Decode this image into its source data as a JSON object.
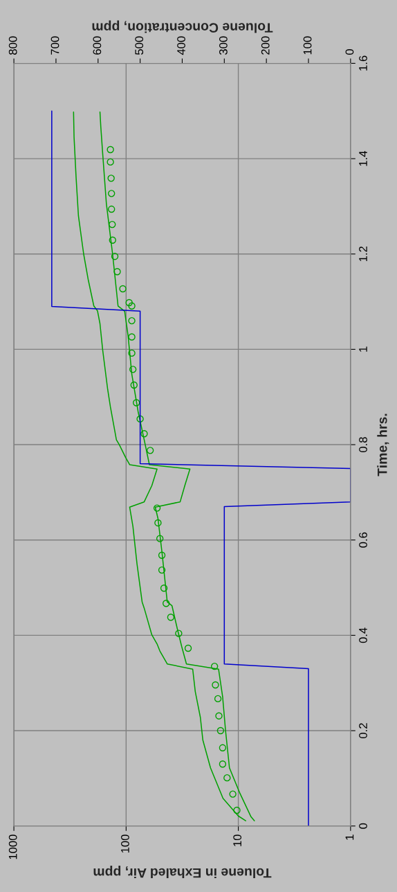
{
  "chart_data": {
    "type": "line",
    "orientation": "horizontal",
    "xlabel": "Toluene in Exhaled Air, ppm",
    "x2label": "Toluene Concentration, ppm",
    "ylabel": "Time, hrs.",
    "log": "x",
    "grid": true,
    "xlim": [
      1000,
      1
    ],
    "xticks": [
      1000,
      100,
      10,
      1
    ],
    "x2lim": [
      800,
      0
    ],
    "x2ticks": [
      800,
      700,
      600,
      500,
      400,
      300,
      200,
      100,
      0
    ],
    "ylim": [
      0,
      1.6
    ],
    "yticks": [
      0,
      0.2,
      0.4,
      0.6,
      0.8,
      1,
      1.2,
      1.4,
      1.6
    ],
    "series": [
      {
        "axis": "x2",
        "color": "#0000cc",
        "x": [
          0,
          0.33,
          0.34,
          0.67,
          0.68,
          0.75,
          0.76,
          1.08,
          1.09,
          1.5
        ],
        "values": [
          100,
          100,
          300,
          300,
          0,
          0,
          500,
          500,
          710,
          710
        ]
      },
      {
        "color": "#00a000",
        "x": [
          0.011,
          0.021,
          0.058,
          0.122,
          0.18,
          0.228,
          0.282,
          0.329,
          0.34,
          0.367,
          0.382,
          0.401,
          0.457,
          0.47,
          0.55,
          0.629,
          0.669,
          0.68,
          0.714,
          0.749,
          0.758,
          0.773,
          0.8,
          0.81,
          0.879,
          0.916,
          1.0,
          1.054,
          1.081,
          1.091,
          1.147,
          1.2,
          1.28,
          1.36,
          1.445,
          1.498
        ],
        "values": [
          8.6,
          10,
          13.7,
          17.7,
          20.7,
          21.8,
          24.2,
          25.5,
          43,
          50,
          53,
          59,
          69,
          72,
          80,
          87,
          93,
          69,
          59,
          53,
          93,
          101,
          115,
          122,
          138,
          146,
          162,
          171,
          180,
          194,
          218,
          239,
          266,
          279,
          291,
          294
        ]
      },
      {
        "color": "#00a000",
        "x": [
          0.011,
          0.019,
          0.069,
          0.122,
          0.2,
          0.271,
          0.329,
          0.34,
          0.377,
          0.414,
          0.462,
          0.47,
          0.576,
          0.645,
          0.669,
          0.68,
          0.714,
          0.749,
          0.758,
          0.81,
          0.868,
          0.948,
          1.028,
          1.08,
          1.091,
          1.2,
          1.306,
          1.413,
          1.466,
          1.498
        ],
        "values": [
          7.2,
          7.7,
          9.7,
          12.0,
          13.0,
          13.8,
          15.0,
          29,
          32,
          35,
          39,
          43,
          48,
          52,
          55,
          33,
          30,
          27,
          62,
          69,
          78,
          89,
          96,
          103,
          118,
          132,
          150,
          162,
          168,
          171
        ]
      },
      {
        "type": "scatter",
        "marker": "circle",
        "color": "#00a000",
        "x": [
          0.033,
          0.067,
          0.101,
          0.13,
          0.164,
          0.2,
          0.231,
          0.267,
          0.296,
          0.335,
          0.373,
          0.404,
          0.438,
          0.467,
          0.499,
          0.537,
          0.568,
          0.603,
          0.636,
          0.667,
          0.788,
          0.823,
          0.854,
          0.888,
          0.925,
          0.958,
          0.992,
          1.026,
          1.06,
          1.091,
          1.098,
          1.127,
          1.163,
          1.195,
          1.229,
          1.262,
          1.294,
          1.327,
          1.359,
          1.393,
          1.419
        ],
        "values": [
          10.3,
          11.2,
          12.6,
          13.8,
          13.8,
          14.4,
          14.9,
          15.2,
          16.0,
          16.3,
          28,
          34,
          40,
          44,
          46,
          48,
          48,
          50,
          52,
          53,
          61,
          69,
          75,
          81,
          85,
          87,
          89,
          89,
          89,
          89,
          94,
          107,
          120,
          126,
          132,
          133,
          135,
          135,
          136,
          138,
          138
        ]
      }
    ]
  }
}
